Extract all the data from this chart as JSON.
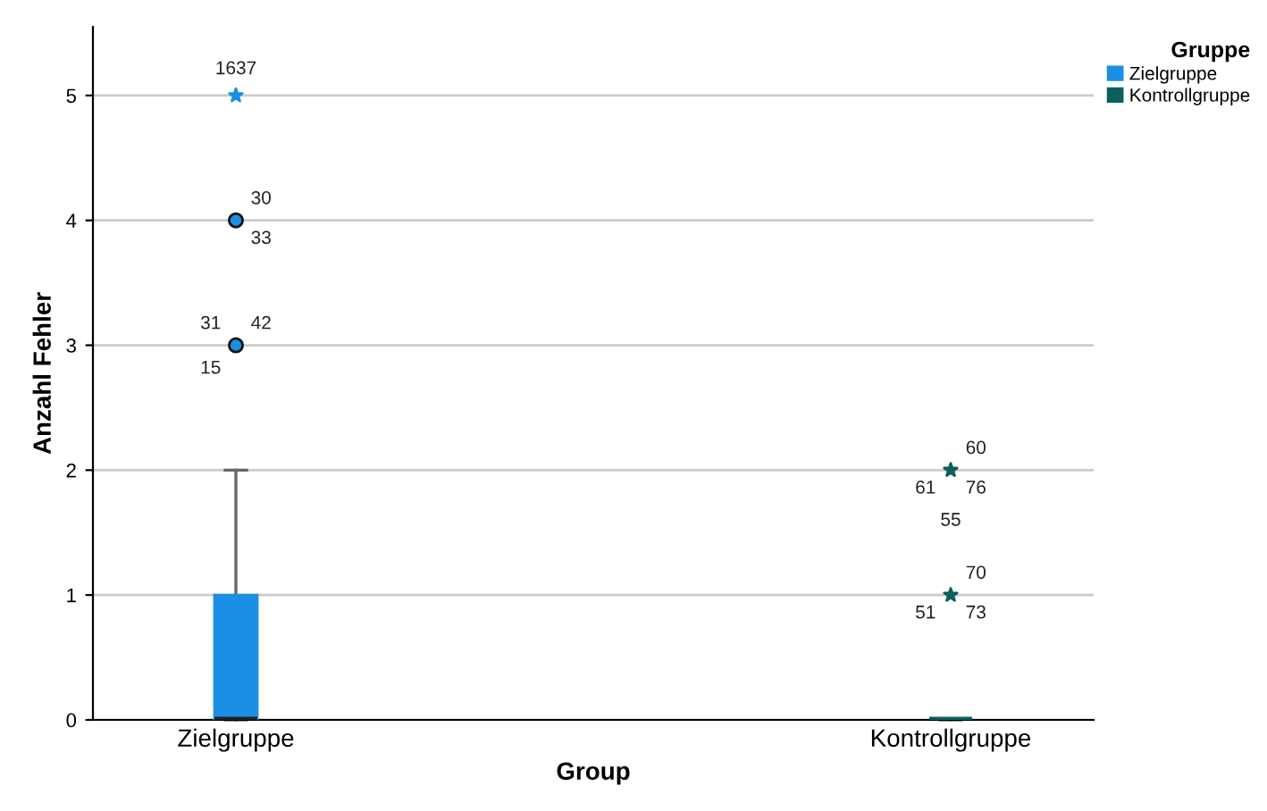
{
  "chart_data": {
    "type": "box",
    "xlabel": "Group",
    "ylabel": "Anzahl Fehler",
    "legend_title": "Gruppe",
    "legend": "top right",
    "grid": "y",
    "categories": [
      "Zielgruppe",
      "Kontrollgruppe"
    ],
    "ylim": [
      0,
      5.55
    ],
    "yticks": [
      0,
      1,
      2,
      3,
      4,
      5
    ],
    "series": [
      {
        "name": "Zielgruppe",
        "color": "#1a8fe3",
        "boxes": [
          {
            "low": 0,
            "q1": 0,
            "median": 0,
            "q3": 1,
            "high": 2
          },
          null
        ]
      },
      {
        "name": "Kontrollgruppe",
        "color": "#0b605b",
        "boxes": [
          null,
          {
            "low": 0,
            "q1": 0,
            "median": 0,
            "q3": 0,
            "high": 0
          }
        ]
      },
      {
        "type": "scatter",
        "marker": "circle",
        "color": "#1a8fe3",
        "x": [
          "Zielgruppe",
          "Zielgruppe"
        ],
        "values": [
          3,
          4
        ]
      },
      {
        "type": "scatter",
        "marker": "star",
        "color": "#1a8fe3",
        "x": [
          "Zielgruppe"
        ],
        "values": [
          5
        ]
      },
      {
        "type": "scatter",
        "marker": "star",
        "color": "#0b605b",
        "x": [
          "Kontrollgruppe",
          "Kontrollgruppe"
        ],
        "values": [
          1,
          2
        ]
      }
    ],
    "annotations": [
      {
        "text": "1637",
        "x": "Zielgruppe",
        "y": 5
      },
      {
        "text": "30",
        "x": "Zielgruppe",
        "y": 4
      },
      {
        "text": "33",
        "x": "Zielgruppe",
        "y": 4
      },
      {
        "text": "31",
        "x": "Zielgruppe",
        "y": 3
      },
      {
        "text": "42",
        "x": "Zielgruppe",
        "y": 3
      },
      {
        "text": "15",
        "x": "Zielgruppe",
        "y": 3
      },
      {
        "text": "60",
        "x": "Kontrollgruppe",
        "y": 2
      },
      {
        "text": "61",
        "x": "Kontrollgruppe",
        "y": 2
      },
      {
        "text": "76",
        "x": "Kontrollgruppe",
        "y": 2
      },
      {
        "text": "55",
        "x": "Kontrollgruppe",
        "y": 2
      },
      {
        "text": "70",
        "x": "Kontrollgruppe",
        "y": 1
      },
      {
        "text": "51",
        "x": "Kontrollgruppe",
        "y": 1
      },
      {
        "text": "73",
        "x": "Kontrollgruppe",
        "y": 1
      }
    ]
  }
}
